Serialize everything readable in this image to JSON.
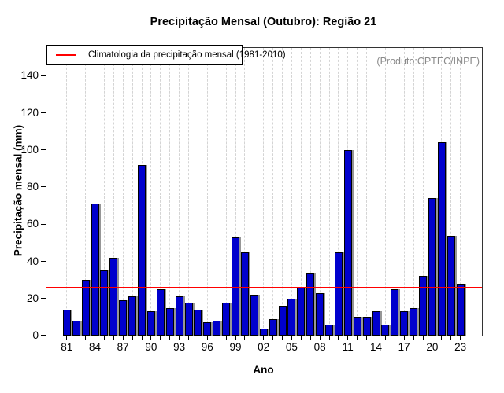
{
  "title": "Precipitação Mensal (Outubro): Região 21",
  "legend": {
    "label": "Climatologia da precipitação mensal (1981-2010)",
    "line_color": "#ff0000",
    "position": "top-left"
  },
  "watermark": "(Produto:CPTEC/INPE)",
  "colors": {
    "bar_fill": "#0000CD",
    "bar_border": "#000000",
    "bar_shadow": "#969696",
    "climatology_line": "#ff0000",
    "gridline": "#d4d4d4",
    "watermark_text": "#8a8a8a"
  },
  "chart_data": {
    "type": "bar",
    "title": "Precipitação Mensal (Outubro): Região 21",
    "xlabel": "Ano",
    "ylabel": "Precipitação mensal (mm)",
    "ylim": [
      0,
      155
    ],
    "yticks": [
      0,
      20,
      40,
      60,
      80,
      100,
      120,
      140
    ],
    "categories": [
      "81",
      "82",
      "83",
      "84",
      "85",
      "86",
      "87",
      "88",
      "89",
      "90",
      "91",
      "92",
      "93",
      "94",
      "95",
      "96",
      "97",
      "98",
      "99",
      "00",
      "01",
      "02",
      "03",
      "04",
      "05",
      "06",
      "07",
      "08",
      "09",
      "10",
      "11",
      "12",
      "13",
      "14",
      "15",
      "16",
      "17",
      "18",
      "19",
      "20",
      "21",
      "22",
      "23"
    ],
    "xtick_labels": [
      "81",
      "84",
      "87",
      "90",
      "93",
      "96",
      "99",
      "02",
      "05",
      "08",
      "11",
      "14",
      "17",
      "20",
      "23"
    ],
    "values": [
      14,
      8,
      30,
      71,
      35,
      42,
      19,
      21,
      92,
      13,
      25,
      15,
      21,
      18,
      14,
      7,
      8,
      18,
      53,
      45,
      22,
      4,
      9,
      16,
      20,
      26,
      34,
      23,
      6,
      45,
      100,
      10,
      10,
      13,
      6,
      25,
      13,
      15,
      32,
      74,
      104,
      54,
      28
    ],
    "climatology_value": 26,
    "grid": "vertical dashed per year",
    "legend_position": "top-left"
  }
}
